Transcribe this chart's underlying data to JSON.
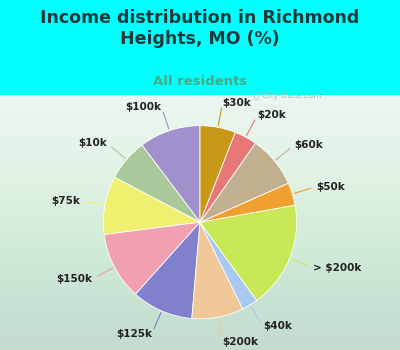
{
  "title": "Income distribution in Richmond\nHeights, MO (%)",
  "subtitle": "All residents",
  "watermark": "ⓘ City-Data.com",
  "labels": [
    "$100k",
    "$10k",
    "$75k",
    "$150k",
    "$125k",
    "$200k",
    "$40k",
    "> $200k",
    "$50k",
    "$60k",
    "$20k",
    "$30k"
  ],
  "sizes": [
    9.5,
    6.5,
    9.0,
    10.5,
    9.5,
    8.0,
    2.5,
    16.5,
    3.5,
    8.0,
    3.5,
    5.5
  ],
  "colors": [
    "#a090cc",
    "#a8c89a",
    "#f0f070",
    "#f0a0b0",
    "#8080cc",
    "#f0c898",
    "#a8c8f0",
    "#c8e855",
    "#f0a030",
    "#c0b090",
    "#e87878",
    "#c89818"
  ],
  "bg_color": "#00ffff",
  "panel_bg_top": "#e8f5ee",
  "panel_bg_bottom": "#d5ede0",
  "title_color": "#1a3a3a",
  "subtitle_color": "#4aaa80",
  "startangle": 90,
  "label_fontsize": 7.5,
  "title_fontsize": 12.5,
  "subtitle_fontsize": 9.5,
  "watermark_color": "#a0b8b8",
  "label_color": "#222222"
}
